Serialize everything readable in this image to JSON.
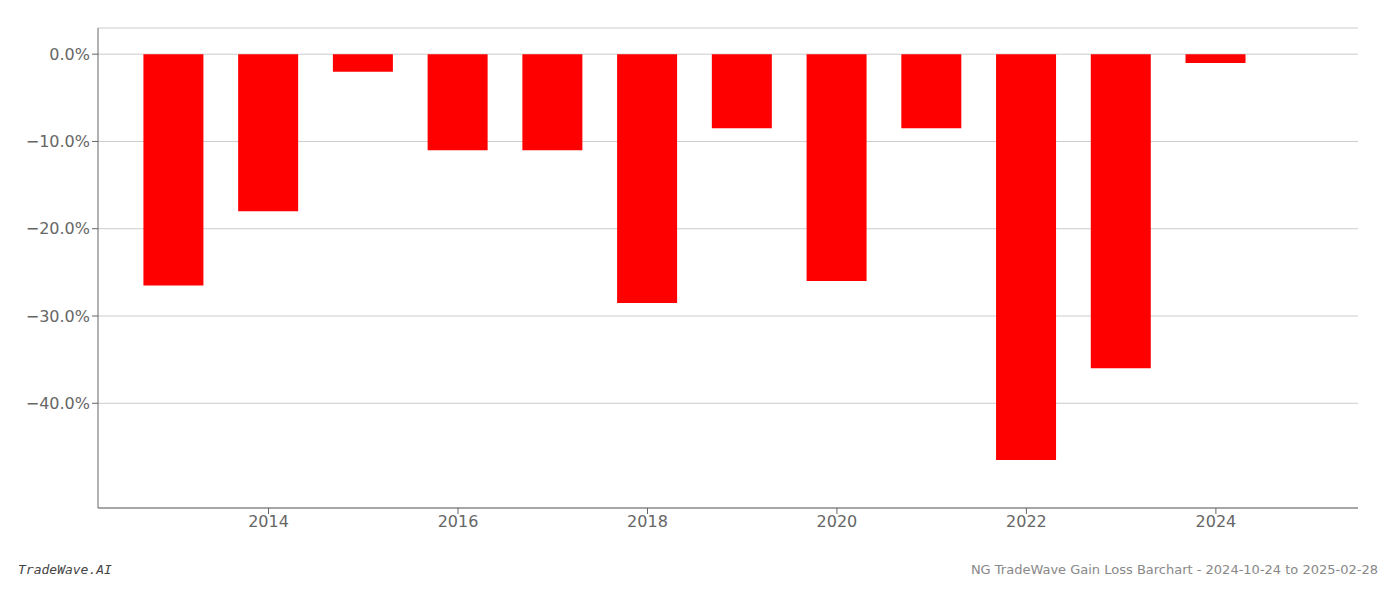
{
  "chart_data": {
    "type": "bar",
    "x": [
      2013,
      2014,
      2015,
      2016,
      2017,
      2018,
      2019,
      2020,
      2021,
      2022,
      2023,
      2024
    ],
    "values": [
      -26.5,
      -18.0,
      -2.0,
      -11.0,
      -11.0,
      -28.5,
      -8.5,
      -26.0,
      -8.5,
      -46.5,
      -36.0,
      -1.0
    ],
    "color": "#ff0000",
    "ylim": [
      -52,
      3
    ],
    "yticks": [
      {
        "value": 0.0,
        "label": "0.0%"
      },
      {
        "value": -10.0,
        "label": "−10.0%"
      },
      {
        "value": -20.0,
        "label": "−20.0%"
      },
      {
        "value": -30.0,
        "label": "−30.0%"
      },
      {
        "value": -40.0,
        "label": "−40.0%"
      }
    ],
    "xlim": [
      2012.2,
      2025.5
    ],
    "xticks": [
      2014,
      2016,
      2018,
      2020,
      2022,
      2024
    ],
    "grid": true,
    "annotations": [
      "TradeWave.AI",
      "NG TradeWave Gain Loss Barchart - 2024-10-24 to 2025-02-28"
    ]
  }
}
